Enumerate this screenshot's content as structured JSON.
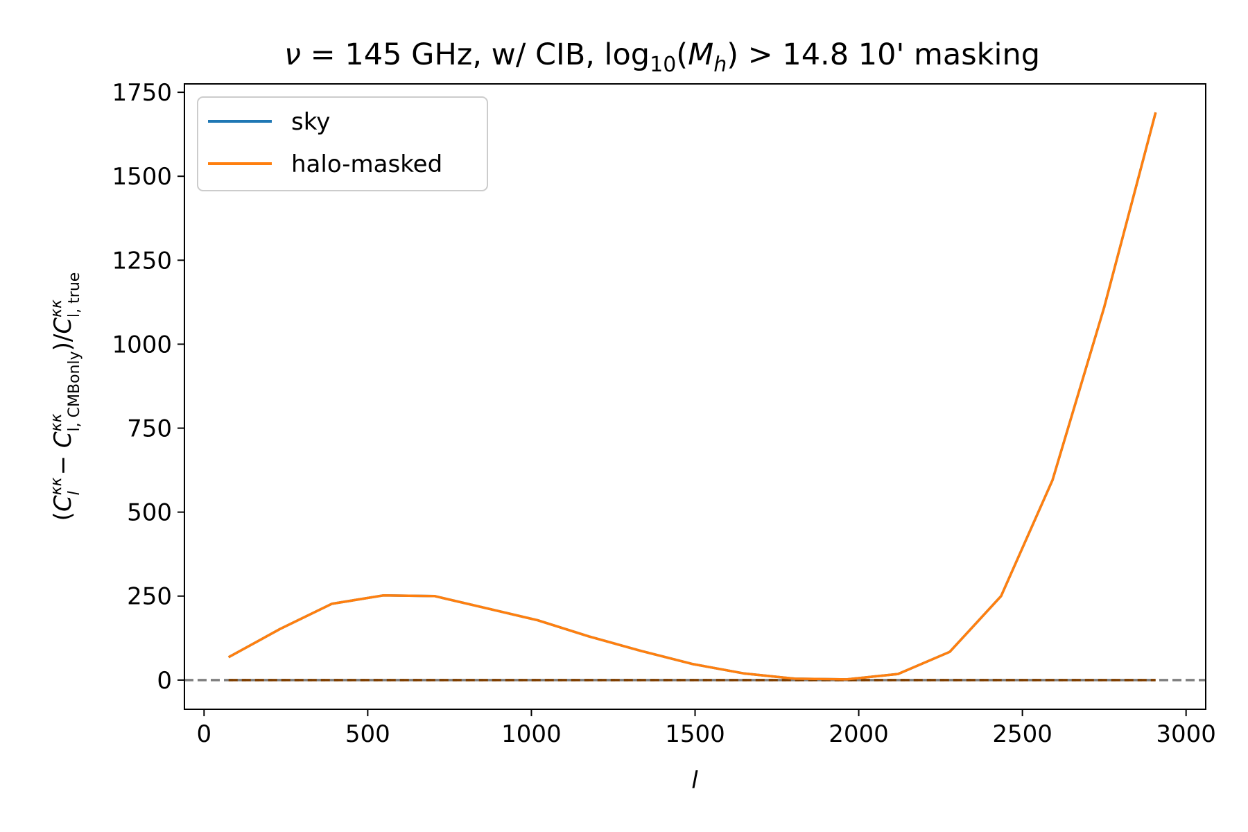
{
  "chart_data": {
    "type": "line",
    "title": "ν = 145 GHz, w/ CIB, log₁₀(Mₕ) > 14.8 10' masking",
    "title_parts": {
      "nu": "ν",
      "mid": " = 145 GHz, w/ CIB, log",
      "sub10": "10",
      "open": "(",
      "M": "M",
      "h": "h",
      "tail": ") > 14.8 10' masking"
    },
    "xlabel": "l",
    "ylabel": "(C_l^κκ − C_{l,CMBonly}^κκ)/C_{l,true}^κκ",
    "ylabel_parts": {
      "open": "(",
      "C1": "C",
      "sup1": "κκ",
      "sub1": "l",
      "minus": " − ",
      "C2": "C",
      "sup2": "κκ",
      "sub2": "l, CMBonly",
      "close": ")/",
      "C3": "C",
      "sup3": "κκ",
      "sub3": "l, true"
    },
    "xlim": [
      -60,
      3060
    ],
    "ylim": [
      -87,
      1775
    ],
    "xticks": [
      0,
      500,
      1000,
      1500,
      2000,
      2500,
      3000
    ],
    "yticks": [
      0,
      250,
      500,
      750,
      1000,
      1250,
      1500,
      1750
    ],
    "grid": false,
    "legend_position": "upper-left",
    "x": [
      75,
      232,
      390,
      547,
      704,
      862,
      1019,
      1176,
      1334,
      1491,
      1648,
      1806,
      1963,
      2120,
      2278,
      2435,
      2592,
      2750,
      2907
    ],
    "series": [
      {
        "name": "sky",
        "color": "#1f77b4",
        "values": [
          68,
          152,
          227,
          252,
          250,
          214,
          178,
          130,
          87,
          48,
          20,
          4,
          2,
          18,
          84,
          250,
          595,
          1110,
          1690
        ]
      },
      {
        "name": "halo-masked",
        "color": "#ff7f0e",
        "values": [
          68,
          152,
          227,
          252,
          250,
          214,
          178,
          130,
          87,
          48,
          20,
          4,
          2,
          18,
          84,
          250,
          595,
          1110,
          1690
        ]
      }
    ],
    "reference_lines": [
      {
        "kind": "horizontal",
        "y": 0,
        "color": "#808080",
        "style": "dashed"
      },
      {
        "kind": "horizontal-segment",
        "y": 0,
        "x_from": 75,
        "x_to": 2907,
        "color": "#7f3f00",
        "style": "dashed"
      }
    ]
  }
}
